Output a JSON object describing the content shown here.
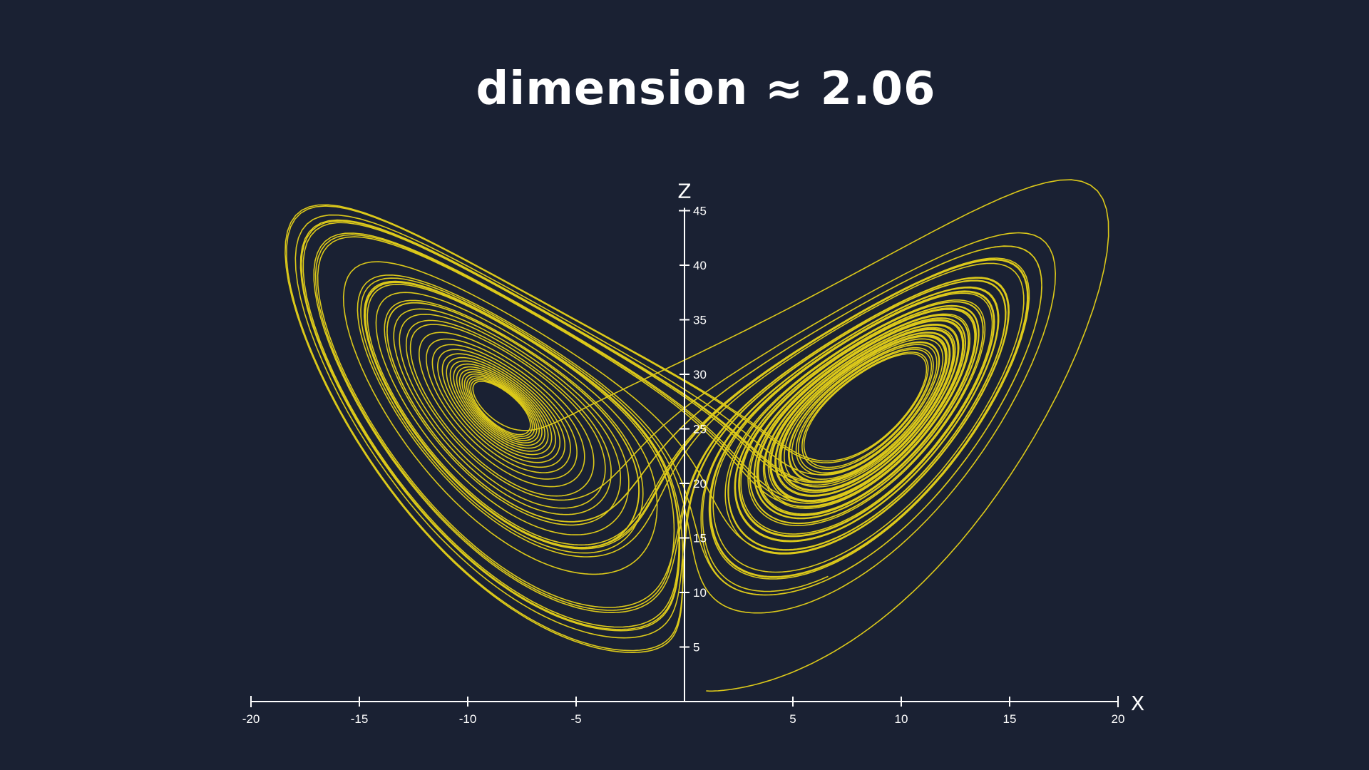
{
  "title": "dimension ≈ 2.06",
  "colors": {
    "background": "#1a2133",
    "trajectory": "#f2dc17",
    "axes": "#ffffff"
  },
  "chart_data": {
    "type": "line",
    "title": "dimension ≈ 2.06",
    "xlabel": "X",
    "ylabel": "Z",
    "xlim": [
      -20,
      20
    ],
    "ylim": [
      0,
      45
    ],
    "x_ticks": [
      {
        "value": -20,
        "label": "-20"
      },
      {
        "value": -15,
        "label": "-15"
      },
      {
        "value": -10,
        "label": "-10"
      },
      {
        "value": -5,
        "label": "-5"
      },
      {
        "value": 5,
        "label": "5"
      },
      {
        "value": 10,
        "label": "10"
      },
      {
        "value": 15,
        "label": "15"
      },
      {
        "value": 20,
        "label": "20"
      }
    ],
    "y_ticks": [
      {
        "value": 5,
        "label": "5"
      },
      {
        "value": 10,
        "label": "10"
      },
      {
        "value": 15,
        "label": "15"
      },
      {
        "value": 20,
        "label": "20"
      },
      {
        "value": 25,
        "label": "25"
      },
      {
        "value": 30,
        "label": "30"
      },
      {
        "value": 35,
        "label": "35"
      },
      {
        "value": 40,
        "label": "40"
      },
      {
        "value": 45,
        "label": "45"
      }
    ],
    "series": [
      {
        "system": "lorenz",
        "params": {
          "sigma": 10,
          "rho": 28,
          "beta": 2.6667
        },
        "initial": [
          1,
          1,
          1
        ],
        "dt": 0.005,
        "steps": 14000,
        "plotted": [
          "x",
          "z"
        ]
      }
    ],
    "grid": false,
    "legend": "none"
  }
}
